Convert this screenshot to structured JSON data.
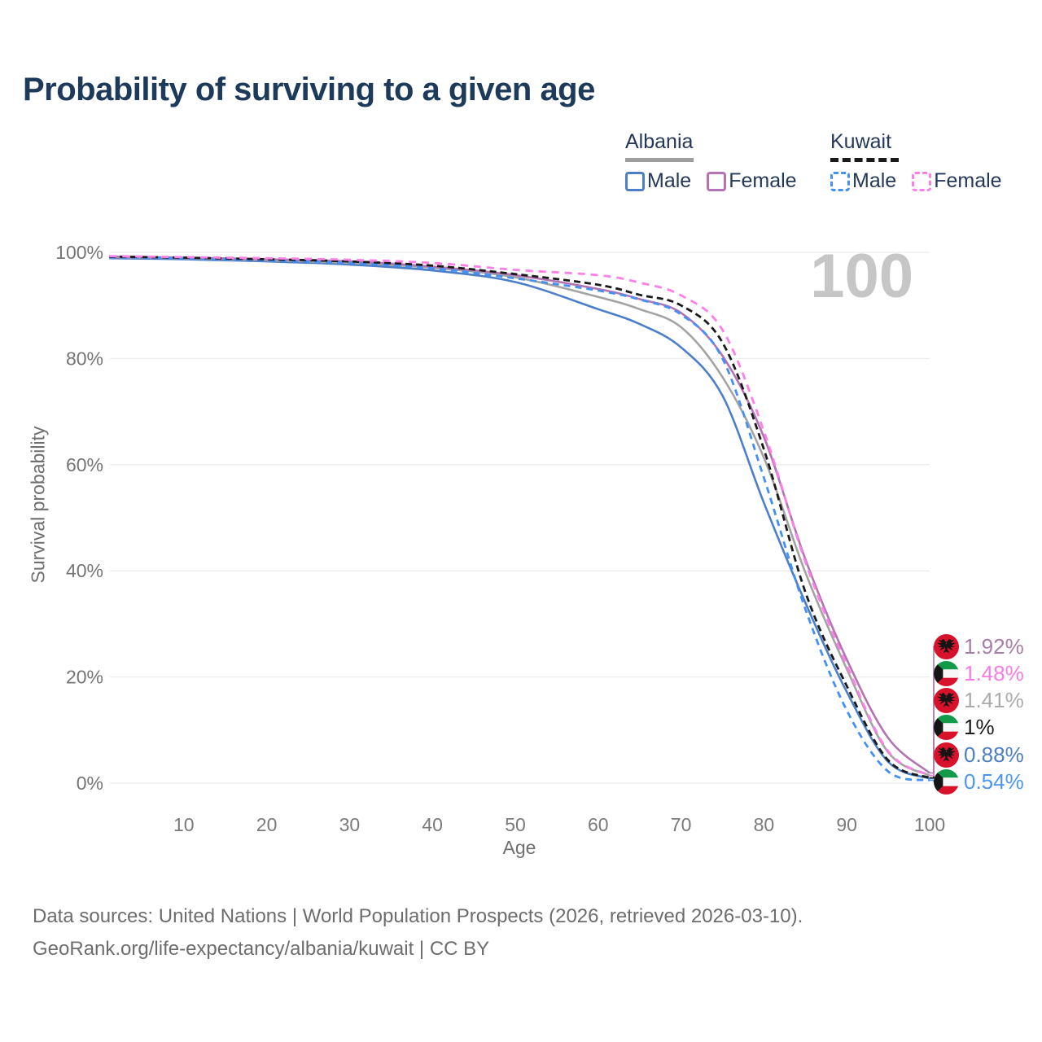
{
  "header": {
    "title": "Probability of surviving to a given age"
  },
  "legend": {
    "groups": [
      {
        "name": "Albania",
        "line_style": "solid",
        "line_color": "#9e9e9e",
        "items": [
          {
            "label": "Male",
            "color": "#4d7fc9",
            "dashed": false
          },
          {
            "label": "Female",
            "color": "#b573b5",
            "dashed": false
          }
        ]
      },
      {
        "name": "Kuwait",
        "line_style": "dashed",
        "line_color": "#1a1a1a",
        "items": [
          {
            "label": "Male",
            "color": "#4490f5",
            "dashed": true
          },
          {
            "label": "Female",
            "color": "#fb80e8",
            "dashed": true
          }
        ]
      }
    ]
  },
  "chart_data": {
    "type": "line",
    "title": "Probability of surviving to a given age",
    "xlabel": "Age",
    "ylabel": "Survival probability",
    "xlim": [
      0,
      100
    ],
    "ylim": [
      0,
      100
    ],
    "grid": "horizontal-only",
    "legend_position": "top-right",
    "watermark": "100",
    "x_ticks": [
      10,
      20,
      30,
      40,
      50,
      60,
      70,
      80,
      90,
      100
    ],
    "y_ticks": [
      {
        "value": 0,
        "label": "0%"
      },
      {
        "value": 20,
        "label": "20%"
      },
      {
        "value": 40,
        "label": "40%"
      },
      {
        "value": 60,
        "label": "60%"
      },
      {
        "value": 80,
        "label": "80%"
      },
      {
        "value": 100,
        "label": "100%"
      }
    ],
    "x": [
      1,
      10,
      20,
      30,
      40,
      50,
      60,
      65,
      70,
      75,
      80,
      85,
      90,
      95,
      100
    ],
    "series": [
      {
        "id": "albania-female",
        "name": "Albania Female",
        "country": "Albania",
        "sex": "Female",
        "style": "solid",
        "color": "#b273b2",
        "label_color": "#a87da8",
        "dash": "",
        "end_label": "1.92%",
        "values": [
          99.2,
          99.0,
          98.7,
          98.3,
          97.3,
          95.7,
          93.1,
          91.2,
          88.6,
          80.5,
          65.2,
          42.2,
          23.3,
          8.5,
          1.92
        ]
      },
      {
        "id": "kuwait-female",
        "name": "Kuwait Female",
        "country": "Kuwait",
        "sex": "Female",
        "style": "dashed",
        "color": "#fb80e8",
        "label_color": "#f97ce2",
        "dash": "9 7",
        "end_label": "1.48%",
        "values": [
          99.3,
          99.1,
          98.9,
          98.6,
          98.0,
          96.7,
          95.7,
          94.3,
          91.9,
          85.4,
          66.3,
          41.7,
          22.2,
          6.0,
          1.48
        ]
      },
      {
        "id": "albania-total",
        "name": "Albania Both sexes",
        "country": "Albania",
        "sex": "Total",
        "style": "solid",
        "color": "#a3a3a3",
        "label_color": "#ababab",
        "dash": "",
        "end_label": "1.41%",
        "values": [
          99.1,
          98.9,
          98.5,
          98.0,
          97.1,
          95.3,
          91.6,
          89.3,
          85.9,
          76.5,
          61.3,
          39.7,
          21.5,
          5.8,
          1.41
        ]
      },
      {
        "id": "kuwait-total",
        "name": "Kuwait Both sexes",
        "country": "Kuwait",
        "sex": "Total",
        "style": "dashed",
        "color": "#1a1a1a",
        "label_color": "#1c1c1c",
        "dash": "8 5",
        "end_label": "1%",
        "values": [
          99.2,
          99.0,
          98.7,
          98.3,
          97.5,
          95.9,
          93.9,
          92.0,
          90.0,
          83.0,
          62.9,
          36.0,
          18.3,
          4.3,
          1.0
        ]
      },
      {
        "id": "albania-male",
        "name": "Albania Male",
        "country": "Albania",
        "sex": "Male",
        "style": "solid",
        "color": "#4d7fc9",
        "label_color": "#4d7fc1",
        "dash": "",
        "end_label": "0.88%",
        "values": [
          98.9,
          98.7,
          98.3,
          97.7,
          96.6,
          94.4,
          89.3,
          86.5,
          82.1,
          73.0,
          52.8,
          34.0,
          17.2,
          4.0,
          0.88
        ]
      },
      {
        "id": "kuwait-male",
        "name": "Kuwait Male",
        "country": "Kuwait",
        "sex": "Male",
        "style": "dashed",
        "color": "#4490f5",
        "label_color": "#4b95f3",
        "dash": "8 6",
        "end_label": "0.54%",
        "values": [
          99.1,
          98.9,
          98.5,
          98.0,
          97.0,
          95.1,
          92.8,
          91.1,
          88.3,
          80.0,
          57.5,
          32.8,
          13.7,
          2.2,
          0.54
        ]
      }
    ],
    "draw_order": [
      "albania-male",
      "albania-total",
      "albania-female",
      "kuwait-male",
      "kuwait-total",
      "kuwait-female"
    ]
  },
  "end_labels": [
    {
      "flag": "albania",
      "value": "1.92%",
      "color": "#a87da8"
    },
    {
      "flag": "kuwait",
      "value": "1.48%",
      "color": "#f97ce2"
    },
    {
      "flag": "albania",
      "value": "1.41%",
      "color": "#ababab"
    },
    {
      "flag": "kuwait",
      "value": "1%",
      "color": "#1c1c1c"
    },
    {
      "flag": "albania",
      "value": "0.88%",
      "color": "#4d7fc1"
    },
    {
      "flag": "kuwait",
      "value": "0.54%",
      "color": "#4b95f3"
    }
  ],
  "footer": {
    "line1": "Data sources: United Nations | World Population Prospects (2026, retrieved 2026-03-10).",
    "line2": "GeoRank.org/life-expectancy/albania/kuwait | CC BY"
  }
}
